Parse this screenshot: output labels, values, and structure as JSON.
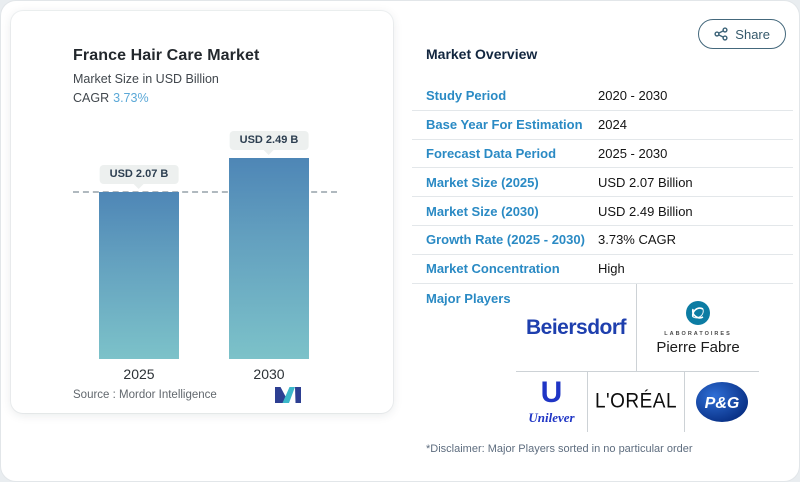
{
  "share": {
    "label": "Share"
  },
  "chart_panel": {
    "title": "France Hair Care Market",
    "subtitle": "Market Size in USD Billion",
    "cagr_label": "CAGR",
    "cagr_value": "3.73%",
    "source_label": "Source :  Mordor Intelligence"
  },
  "chart_data": {
    "type": "bar",
    "categories": [
      "2025",
      "2030"
    ],
    "values": [
      2.07,
      2.49
    ],
    "bar_labels": [
      "USD 2.07 B",
      "USD 2.49 B"
    ],
    "title": "France Hair Care Market",
    "ylabel": "Market Size in USD Billion",
    "cagr": "3.73%",
    "ylim": [
      0,
      2.85
    ],
    "reference_line_at": 2.07,
    "grid": "off",
    "bar_gradient": [
      "#4e86b6",
      "#7cc2c9"
    ]
  },
  "overview": {
    "heading": "Market Overview",
    "rows": [
      {
        "label": "Study Period",
        "value": "2020 - 2030"
      },
      {
        "label": "Base Year For Estimation",
        "value": "2024"
      },
      {
        "label": "Forecast Data Period",
        "value": "2025 - 2030"
      },
      {
        "label": "Market Size (2025)",
        "value": "USD 2.07 Billion"
      },
      {
        "label": "Market Size (2030)",
        "value": "USD 2.49 Billion"
      },
      {
        "label": "Growth Rate (2025 - 2030)",
        "value": "3.73% CAGR"
      },
      {
        "label": "Market Concentration",
        "value": "High"
      }
    ],
    "major_players_label": "Major Players",
    "players": {
      "beiersdorf": "Beiersdorf",
      "pierre_fabre_top": "LABORATOIRES",
      "pierre_fabre": "Pierre Fabre",
      "unilever_initial": "U",
      "unilever": "Unilever",
      "loreal": "L'ORÉAL",
      "pg": "P&G"
    },
    "disclaimer": "*Disclaimer: Major Players sorted in no particular order"
  },
  "colors": {
    "accent_blue_label": "#2a8ac4",
    "cagr_blue": "#5ba8d7",
    "heading_navy": "#12263f",
    "bar_top": "#4e86b6",
    "bar_bottom": "#7cc2c9",
    "share_border": "#44687c",
    "beiersdorf_blue": "#1e3fae",
    "unilever_blue": "#1f35c5",
    "pg_blue": "#03277a",
    "pierre_fabre_teal": "#0c7ca3",
    "mordor_navy": "#2d3f92",
    "mordor_teal": "#3bb7c9"
  }
}
